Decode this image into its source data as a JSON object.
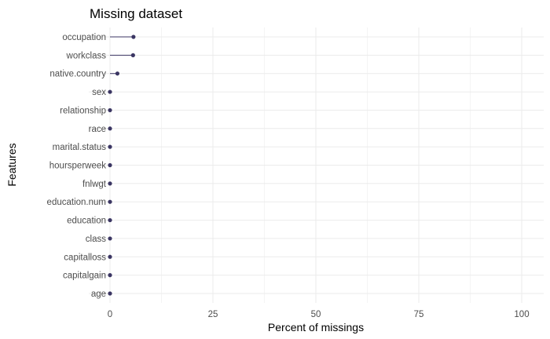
{
  "chart_data": {
    "type": "lollipop",
    "title": "Missing dataset",
    "xlabel": "Percent of missings",
    "ylabel": "Features",
    "xlim": [
      0,
      100
    ],
    "x_ticks": [
      0,
      25,
      50,
      75,
      100
    ],
    "grid": true,
    "legend": "none",
    "colors": {
      "point": "#3b3663",
      "segment": "#3b3663"
    },
    "categories": [
      "occupation",
      "workclass",
      "native.country",
      "sex",
      "relationship",
      "race",
      "marital.status",
      "hoursperweek",
      "fnlwgt",
      "education.num",
      "education",
      "class",
      "capitalloss",
      "capitalgain",
      "age"
    ],
    "values": [
      5.7,
      5.6,
      1.8,
      0,
      0,
      0,
      0,
      0,
      0,
      0,
      0,
      0,
      0,
      0,
      0
    ]
  }
}
